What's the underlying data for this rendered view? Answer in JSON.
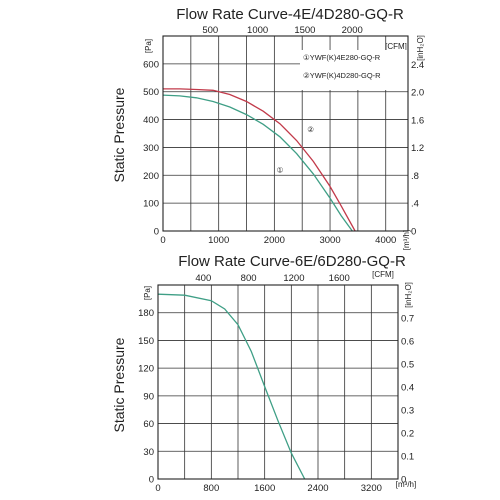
{
  "chart_data": [
    {
      "type": "line",
      "title": "Flow Rate Curve-4E/4D280-GQ-R",
      "ylabel": "Static Pressure",
      "left_unit": "[Pa]",
      "bottom_unit": "[m³/h]",
      "top_unit": "[CFM]",
      "right_unit": "[inH₂O]",
      "xlim": [
        0,
        4400
      ],
      "ylim": [
        0,
        700
      ],
      "x_ticks": [
        "0",
        "1000",
        "2000",
        "3000",
        "4000"
      ],
      "x_tick_values": [
        0,
        1000,
        2000,
        3000,
        4000
      ],
      "y_ticks": [
        "0",
        "100",
        "200",
        "300",
        "400",
        "500",
        "600"
      ],
      "y_tick_values": [
        0,
        100,
        200,
        300,
        400,
        500,
        600
      ],
      "top_ticks": [
        "500",
        "1000",
        "1500",
        "2000"
      ],
      "top_tick_values": [
        500,
        1000,
        1500,
        2000
      ],
      "right_ticks": [
        "0",
        ".4",
        ".8",
        "1.2",
        "1.6",
        "2.0",
        "2.4"
      ],
      "right_tick_values": [
        0,
        0.4,
        0.8,
        1.2,
        1.6,
        2.0,
        2.4
      ],
      "grid": true,
      "legend_position": "top-right",
      "legend": [
        "①YWF(K)4E280-GQ-R",
        "②YWF(K)4D280-GQ-R"
      ],
      "curve_labels": [
        "①",
        "②"
      ],
      "series": [
        {
          "legend_index": 0,
          "label_index": 0,
          "label_at": [
            2100,
            210
          ],
          "color": "#3f9f86",
          "x": [
            0,
            300,
            600,
            900,
            1200,
            1500,
            1800,
            2100,
            2400,
            2700,
            3000,
            3200,
            3400
          ],
          "y": [
            488,
            485,
            478,
            465,
            445,
            418,
            383,
            338,
            278,
            205,
            118,
            55,
            0
          ]
        },
        {
          "legend_index": 1,
          "label_index": 1,
          "label_at": [
            2650,
            355
          ],
          "color": "#c23a4a",
          "x": [
            0,
            300,
            600,
            900,
            1200,
            1500,
            1800,
            2100,
            2400,
            2700,
            3000,
            3200,
            3450
          ],
          "y": [
            510,
            510,
            508,
            505,
            490,
            465,
            430,
            385,
            325,
            250,
            160,
            90,
            0
          ]
        }
      ]
    },
    {
      "type": "line",
      "title": "Flow Rate Curve-6E/6D280-GQ-R",
      "ylabel": "Static Pressure",
      "left_unit": "[Pa]",
      "bottom_unit": "[m³/h]",
      "top_unit": "[CFM]",
      "right_unit": "[inH₂O]",
      "xlim": [
        0,
        3600
      ],
      "ylim": [
        0,
        210
      ],
      "x_ticks": [
        "0",
        "800",
        "1600",
        "2400",
        "3200"
      ],
      "x_tick_values": [
        0,
        800,
        1600,
        2400,
        3200
      ],
      "y_ticks": [
        "0",
        "30",
        "60",
        "90",
        "120",
        "150",
        "180"
      ],
      "y_tick_values": [
        0,
        30,
        60,
        90,
        120,
        150,
        180
      ],
      "top_ticks": [
        "400",
        "800",
        "1200",
        "1600"
      ],
      "top_tick_values": [
        400,
        800,
        1200,
        1600
      ],
      "right_ticks": [
        "0",
        "0.1",
        "0.2",
        "0.3",
        "0.4",
        "0.5",
        "0.6",
        "0.7"
      ],
      "right_tick_values": [
        0,
        0.1,
        0.2,
        0.3,
        0.4,
        0.5,
        0.6,
        0.7
      ],
      "grid": true,
      "series": [
        {
          "color": "#3f9f86",
          "x": [
            0,
            400,
            800,
            1000,
            1200,
            1400,
            1600,
            1800,
            2000,
            2200
          ],
          "y": [
            200,
            199,
            193,
            184,
            167,
            138,
            100,
            63,
            28,
            0
          ]
        }
      ]
    }
  ]
}
